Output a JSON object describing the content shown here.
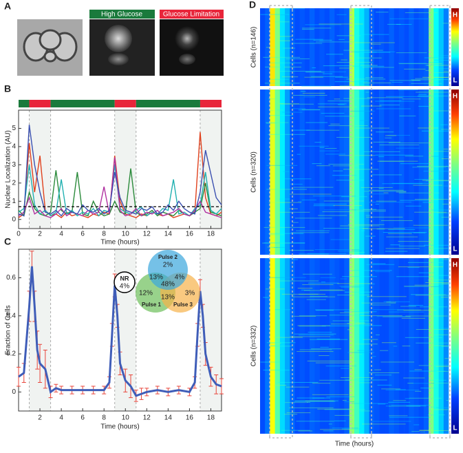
{
  "figure": {
    "panel_letters": [
      "A",
      "B",
      "C",
      "D"
    ],
    "panel_a_titles": [
      "High Glucose",
      "Glucose Limitation"
    ]
  },
  "chart_data": [
    {
      "type": "line",
      "ylabel": "Nuclear Localization (AU)",
      "xlabel": "Time (hours)",
      "xlim": [
        0,
        19
      ],
      "ylim": [
        -0.5,
        6
      ],
      "xticks": [
        0,
        2,
        4,
        6,
        8,
        10,
        12,
        14,
        16,
        18
      ],
      "yticks": [
        0,
        1,
        2,
        3,
        4,
        5
      ],
      "shaded_intervals": [
        [
          1,
          3
        ],
        [
          9,
          11
        ],
        [
          17,
          19
        ]
      ],
      "threshold": 0.7,
      "condition_bar": [
        {
          "start": 0,
          "end": 1,
          "color": "#1a7a3c"
        },
        {
          "start": 1,
          "end": 3,
          "color": "#e8253a"
        },
        {
          "start": 3,
          "end": 9,
          "color": "#1a7a3c"
        },
        {
          "start": 9,
          "end": 11,
          "color": "#e8253a"
        },
        {
          "start": 11,
          "end": 17,
          "color": "#1a7a3c"
        },
        {
          "start": 17,
          "end": 19,
          "color": "#e8253a"
        }
      ],
      "x": [
        0,
        0.5,
        1,
        1.5,
        2,
        2.5,
        3,
        3.5,
        4,
        4.5,
        5,
        5.5,
        6,
        6.5,
        7,
        7.5,
        8,
        8.5,
        9,
        9.5,
        10,
        10.5,
        11,
        11.5,
        12,
        12.5,
        13,
        13.5,
        14,
        14.5,
        15,
        15.5,
        16,
        16.5,
        17,
        17.5,
        18,
        18.5,
        19
      ],
      "series": [
        {
          "color": "#e0401c",
          "values": [
            0.1,
            0.3,
            4.2,
            1.5,
            3.5,
            0.5,
            0.2,
            0.3,
            0.1,
            0.4,
            0.2,
            0.3,
            0.2,
            0.1,
            0.3,
            0.2,
            0.4,
            0.3,
            3.5,
            1.0,
            0.3,
            0.2,
            0.1,
            0.3,
            0.2,
            0.4,
            0.3,
            0.2,
            0.3,
            0.1,
            0.2,
            0.3,
            0.2,
            0.4,
            4.8,
            1.2,
            0.3,
            0.2,
            0.4
          ]
        },
        {
          "color": "#2a8a3a",
          "values": [
            0.5,
            0.2,
            1.5,
            0.6,
            0.3,
            0.2,
            0.4,
            2.7,
            0.5,
            0.3,
            0.4,
            2.6,
            0.3,
            0.2,
            1.0,
            0.4,
            0.2,
            0.3,
            1.0,
            0.4,
            0.3,
            2.8,
            0.4,
            0.2,
            0.3,
            0.5,
            0.2,
            0.4,
            0.3,
            0.2,
            0.5,
            0.3,
            0.2,
            0.4,
            0.6,
            2.0,
            0.4,
            0.3,
            0.2
          ]
        },
        {
          "color": "#20b0b0",
          "values": [
            0.4,
            0.6,
            3.0,
            0.8,
            0.3,
            0.5,
            0.2,
            0.4,
            2.2,
            0.3,
            0.5,
            0.2,
            0.4,
            0.3,
            0.6,
            0.2,
            0.5,
            0.4,
            3.0,
            0.6,
            0.4,
            0.3,
            0.5,
            0.7,
            0.2,
            0.4,
            0.3,
            0.6,
            0.5,
            2.2,
            0.3,
            0.4,
            0.2,
            0.6,
            0.8,
            2.6,
            0.5,
            0.3,
            0.6
          ]
        },
        {
          "color": "#b030a0",
          "values": [
            0.2,
            0.4,
            1.2,
            0.3,
            0.5,
            0.2,
            0.1,
            0.3,
            0.6,
            0.2,
            0.4,
            0.3,
            0.2,
            0.5,
            0.3,
            0.4,
            1.8,
            0.3,
            3.4,
            0.5,
            0.2,
            0.3,
            0.6,
            0.2,
            0.4,
            0.3,
            0.5,
            0.2,
            0.3,
            0.4,
            0.6,
            0.3,
            0.2,
            0.5,
            1.0,
            0.4,
            0.3,
            0.2,
            0.1
          ]
        },
        {
          "color": "#3a4fb0",
          "values": [
            0.3,
            0.2,
            5.2,
            3,
            1.5,
            0.4,
            0.3,
            0.5,
            0.2,
            0.6,
            0.4,
            0.3,
            0.8,
            0.5,
            0.4,
            0.6,
            0.3,
            0.5,
            2.6,
            1.2,
            0.5,
            0.4,
            0.3,
            0.6,
            0.5,
            0.7,
            0.3,
            0.4,
            0.8,
            0.5,
            1.0,
            0.6,
            0.4,
            0.3,
            1.5,
            3.8,
            2.5,
            1.2,
            0.8
          ]
        }
      ]
    },
    {
      "type": "errorline",
      "ylabel": "Fraction of Cells",
      "xlabel": "Time (hours)",
      "xlim": [
        0,
        19
      ],
      "ylim": [
        -0.1,
        0.75
      ],
      "xticks": [
        2,
        4,
        6,
        8,
        10,
        12,
        14,
        16,
        18
      ],
      "yticks": [
        0,
        0.2,
        0.4,
        0.6
      ],
      "shaded_intervals": [
        [
          1,
          3
        ],
        [
          9,
          11
        ],
        [
          17,
          19
        ]
      ],
      "color": "#3f5db8",
      "error_color": "#e8443a",
      "x": [
        0,
        0.5,
        1,
        1.25,
        1.5,
        1.75,
        2,
        2.5,
        3,
        3.5,
        4,
        5,
        6,
        7,
        8,
        8.5,
        8.75,
        9,
        9.25,
        9.5,
        10,
        10.5,
        11,
        11.5,
        12,
        13,
        14,
        15,
        16,
        16.5,
        16.75,
        17,
        17.25,
        17.5,
        18,
        18.5,
        19
      ],
      "values": [
        0.08,
        0.1,
        0.45,
        0.66,
        0.45,
        0.22,
        0.15,
        0.12,
        0.0,
        0.02,
        0.01,
        0.01,
        0.01,
        0.01,
        0.01,
        0.05,
        0.3,
        0.56,
        0.4,
        0.15,
        0.06,
        0.03,
        -0.02,
        -0.01,
        0.0,
        0.01,
        0.0,
        0.01,
        0.0,
        0.05,
        0.3,
        0.53,
        0.4,
        0.2,
        0.08,
        0.04,
        0.03
      ],
      "errors": [
        0.05,
        0.05,
        0.08,
        0.08,
        0.08,
        0.1,
        0.1,
        0.1,
        0.03,
        0.02,
        0.02,
        0.02,
        0.02,
        0.02,
        0.02,
        0.03,
        0.06,
        0.06,
        0.06,
        0.06,
        0.06,
        0.06,
        0.03,
        0.03,
        0.02,
        0.02,
        0.02,
        0.02,
        0.02,
        0.03,
        0.06,
        0.06,
        0.06,
        0.06,
        0.05,
        0.05,
        0.04
      ],
      "venn": {
        "nr": [
          "NR",
          "4%"
        ],
        "pulse_2": "Pulse 2",
        "pulse_1": "Pulse 1",
        "pulse_3": "Pulse 3",
        "only_2": "2%",
        "only_1": "12%",
        "only_3": "3%",
        "p1_p2": "13%",
        "p2_p3": "4%",
        "p1_p3": "13%",
        "all": "48%"
      }
    },
    {
      "type": "heatmap",
      "xlabel": "Time (hours)",
      "high_label": "H",
      "low_label": "L",
      "blocks": [
        {
          "label": "Cells (n=146)",
          "values": [
            0.2,
            0.22,
            0.65,
            0.5,
            0.35,
            0.3,
            0.22,
            0.2,
            0.21,
            0.2,
            0.22,
            0.2,
            0.21,
            0.2,
            0.22,
            0.2,
            0.21,
            0.22,
            0.55,
            0.4,
            0.35,
            0.3,
            0.22,
            0.2,
            0.21,
            0.2,
            0.22,
            0.2,
            0.21,
            0.2,
            0.22,
            0.2,
            0.21,
            0.22,
            0.5,
            0.38,
            0.32,
            0.25
          ]
        },
        {
          "label": "Cells (n=320)",
          "values": [
            0.21,
            0.23,
            0.6,
            0.48,
            0.36,
            0.28,
            0.21,
            0.2,
            0.22,
            0.2,
            0.21,
            0.2,
            0.22,
            0.2,
            0.21,
            0.2,
            0.22,
            0.23,
            0.5,
            0.42,
            0.34,
            0.28,
            0.21,
            0.2,
            0.22,
            0.2,
            0.21,
            0.2,
            0.22,
            0.2,
            0.21,
            0.2,
            0.22,
            0.23,
            0.48,
            0.36,
            0.3,
            0.24
          ]
        },
        {
          "label": "Cells (n=332)",
          "values": [
            0.2,
            0.24,
            0.62,
            0.46,
            0.34,
            0.29,
            0.23,
            0.2,
            0.21,
            0.2,
            0.22,
            0.21,
            0.2,
            0.2,
            0.22,
            0.21,
            0.2,
            0.22,
            0.52,
            0.44,
            0.36,
            0.3,
            0.22,
            0.21,
            0.2,
            0.2,
            0.22,
            0.21,
            0.2,
            0.2,
            0.22,
            0.21,
            0.2,
            0.22,
            0.5,
            0.4,
            0.33,
            0.26
          ]
        }
      ]
    }
  ]
}
